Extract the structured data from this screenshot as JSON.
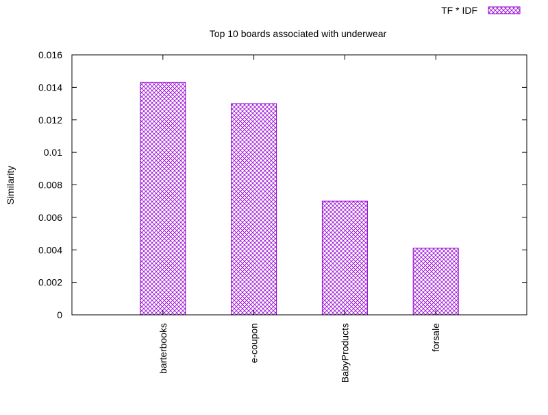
{
  "chart_data": {
    "type": "bar",
    "title": "Top 10 boards associated with underwear",
    "xlabel": "",
    "ylabel": "Similarity",
    "categories": [
      "barterbooks",
      "e-coupon",
      "BabyProducts",
      "forsale"
    ],
    "series": [
      {
        "name": "TF * IDF",
        "values": [
          0.0143,
          0.013,
          0.007,
          0.0041
        ],
        "color": "#9400d3",
        "fill": "crosshatch"
      }
    ],
    "ylim": [
      0,
      0.016
    ],
    "yticks": [
      "0",
      "0.002",
      "0.004",
      "0.006",
      "0.008",
      "0.01",
      "0.012",
      "0.014",
      "0.016"
    ],
    "grid": false,
    "legend_position": "top-right"
  }
}
